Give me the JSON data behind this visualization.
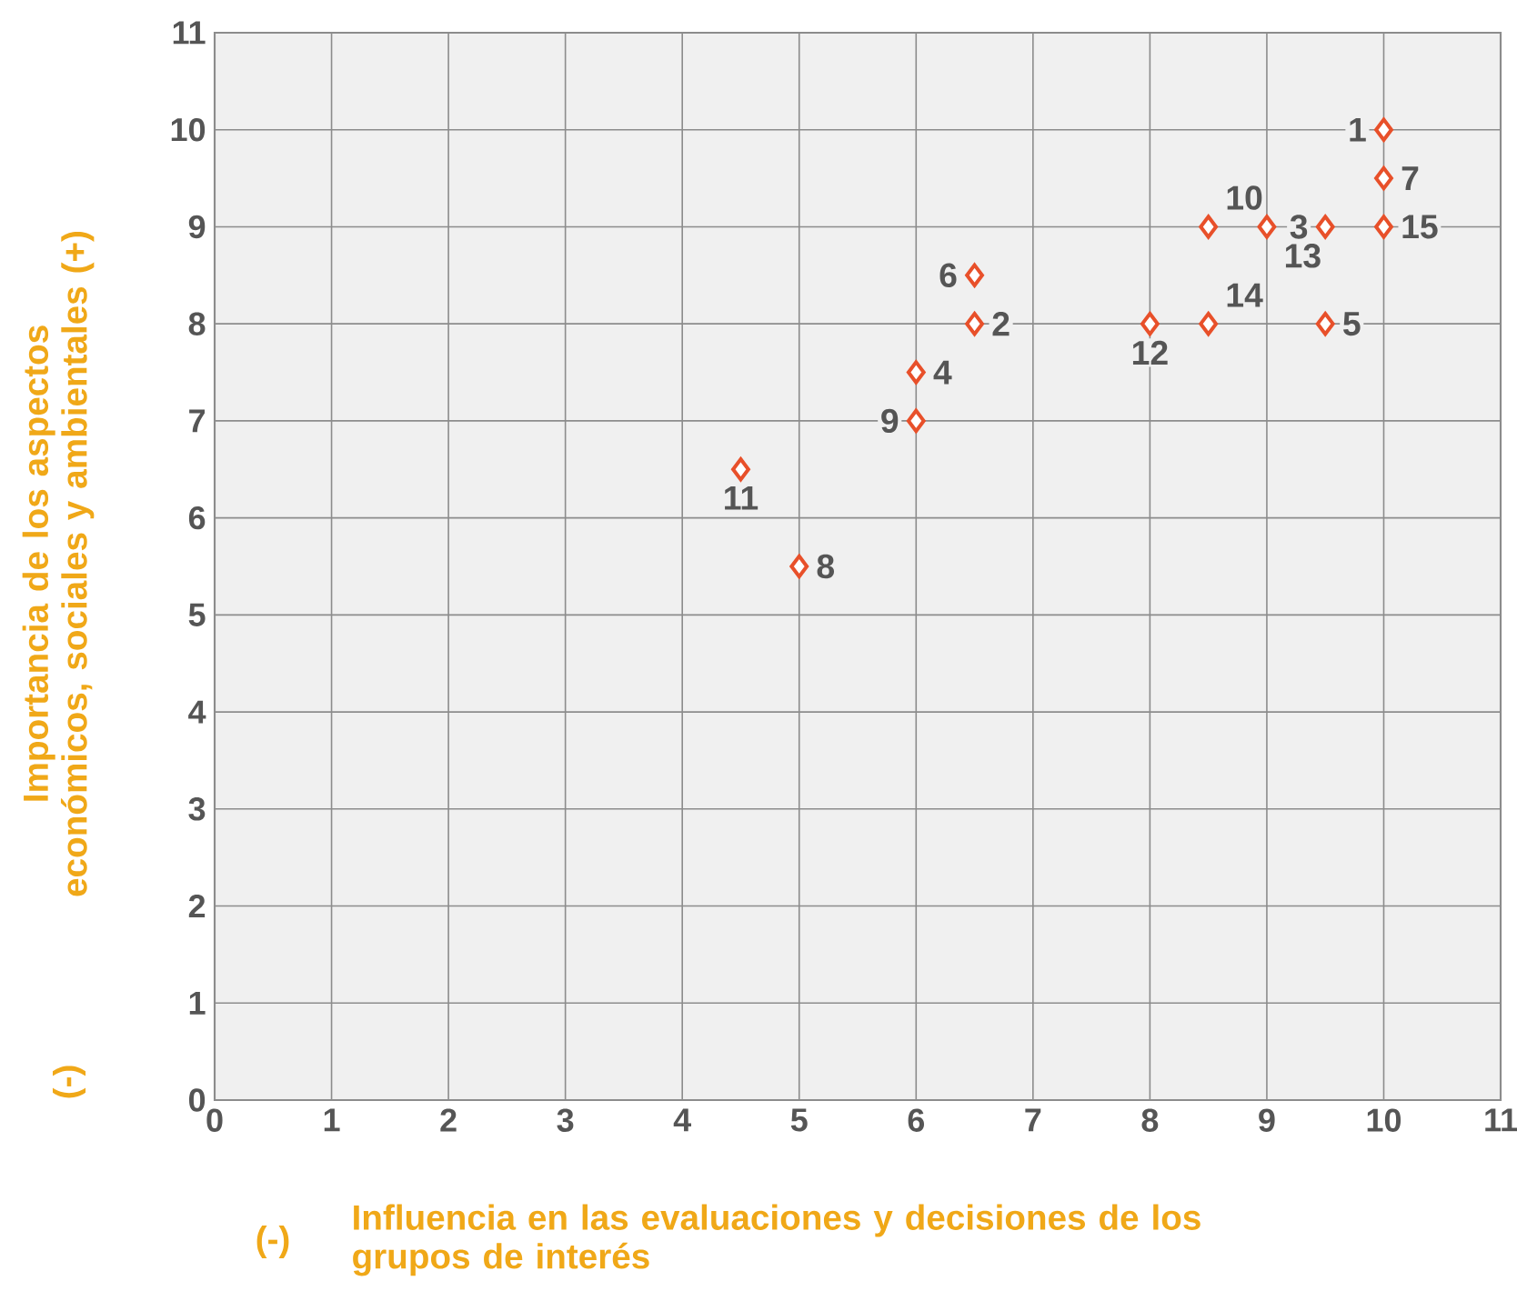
{
  "chart_data": {
    "type": "scatter",
    "xlabel": "Influencia en las evaluaciones y decisiones de los grupos de interés",
    "ylabel": "Importancia de los aspectos económicos, sociales y ambientales  (+)",
    "x": [
      10,
      6.5,
      9.5,
      6,
      9.5,
      6.5,
      10,
      5,
      6,
      8.5,
      4.5,
      8,
      9,
      8.5,
      10
    ],
    "series": [
      {
        "color": "#e8502a",
        "values": [
          10,
          8,
          9,
          7.5,
          8,
          8.5,
          9.5,
          5.5,
          7,
          9,
          6.5,
          8,
          9,
          8,
          9
        ]
      }
    ],
    "xlim": [
      0,
      11
    ],
    "ylim": [
      0,
      11
    ],
    "xticks": [
      0,
      1,
      2,
      3,
      4,
      5,
      6,
      7,
      8,
      9,
      10,
      11
    ],
    "yticks": [
      0,
      1,
      2,
      3,
      4,
      5,
      6,
      7,
      8,
      9,
      10,
      11
    ],
    "grid": true,
    "marker": "diamond",
    "annotations": [
      "(-)",
      "(-)",
      {
        "text": "1",
        "x": 10,
        "y": 10
      },
      {
        "text": "2",
        "x": 6.5,
        "y": 8
      },
      {
        "text": "3",
        "x": 9.5,
        "y": 9
      },
      {
        "text": "4",
        "x": 6,
        "y": 7.5
      },
      {
        "text": "5",
        "x": 9.5,
        "y": 8
      },
      {
        "text": "6",
        "x": 6.5,
        "y": 8.5
      },
      {
        "text": "7",
        "x": 10,
        "y": 9.5
      },
      {
        "text": "8",
        "x": 5,
        "y": 5.5
      },
      {
        "text": "9",
        "x": 6,
        "y": 7
      },
      {
        "text": "10",
        "x": 8.5,
        "y": 9
      },
      {
        "text": "11",
        "x": 4.5,
        "y": 6.5
      },
      {
        "text": "12",
        "x": 8,
        "y": 8
      },
      {
        "text": "13",
        "x": 9,
        "y": 9
      },
      {
        "text": "14",
        "x": 8.5,
        "y": 8
      },
      {
        "text": "15",
        "x": 10,
        "y": 9
      }
    ]
  }
}
